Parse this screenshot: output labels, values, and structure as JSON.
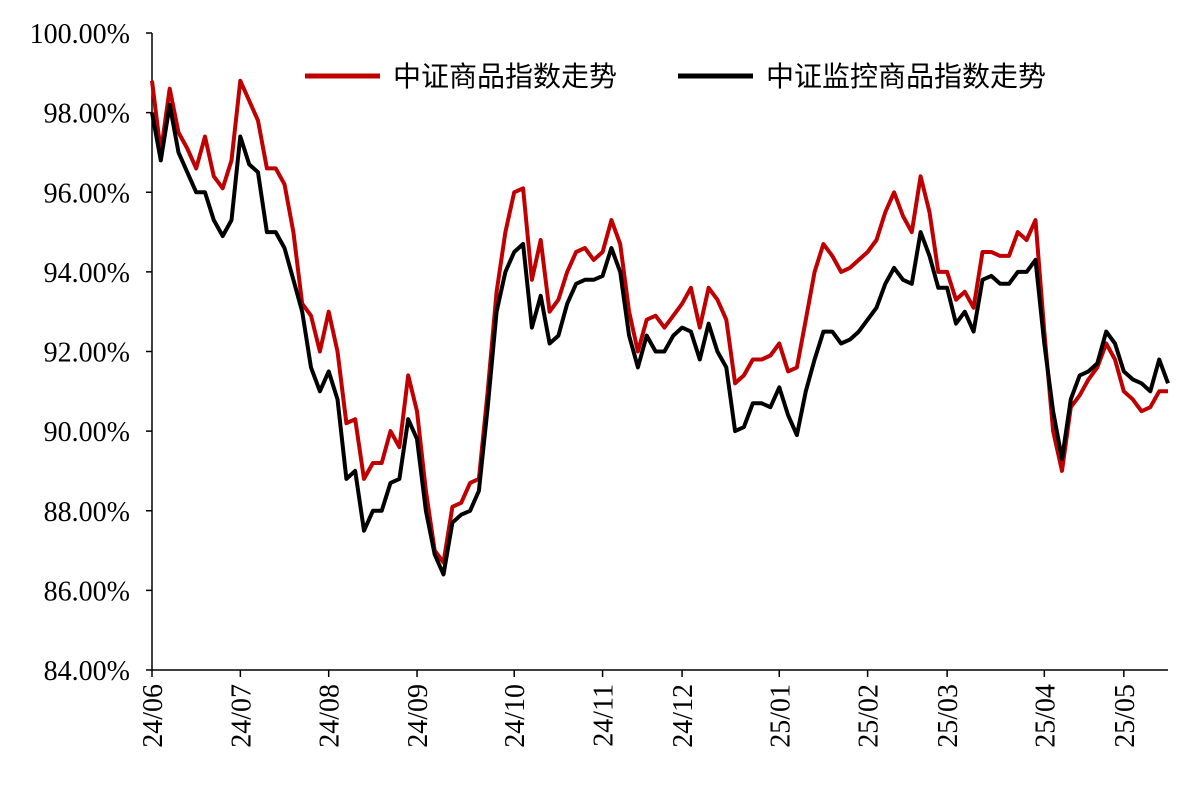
{
  "chart_data": {
    "type": "line",
    "categories": [
      "24/06",
      null,
      null,
      null,
      null,
      null,
      null,
      null,
      null,
      null,
      "24/07",
      null,
      null,
      null,
      null,
      null,
      null,
      null,
      null,
      null,
      "24/08",
      null,
      null,
      null,
      null,
      null,
      null,
      null,
      null,
      null,
      "24/09",
      null,
      null,
      null,
      null,
      null,
      null,
      null,
      null,
      null,
      null,
      "24/10",
      null,
      null,
      null,
      null,
      null,
      null,
      null,
      null,
      null,
      "24/11",
      null,
      null,
      null,
      null,
      null,
      null,
      null,
      null,
      "24/12",
      null,
      null,
      null,
      null,
      null,
      null,
      null,
      null,
      null,
      null,
      "25/01",
      null,
      null,
      null,
      null,
      null,
      null,
      null,
      null,
      null,
      "25/02",
      null,
      null,
      null,
      null,
      null,
      null,
      null,
      null,
      "25/03",
      null,
      null,
      null,
      null,
      null,
      null,
      null,
      null,
      null,
      null,
      "25/04",
      null,
      null,
      null,
      null,
      null,
      null,
      null,
      null,
      "25/05",
      null,
      null,
      null,
      null,
      null
    ],
    "series": [
      {
        "name": "中证商品指数走势",
        "color": "#c00000",
        "values": [
          98.8,
          97.0,
          98.6,
          97.5,
          97.1,
          96.6,
          97.4,
          96.4,
          96.1,
          96.8,
          98.8,
          98.3,
          97.8,
          96.6,
          96.6,
          96.2,
          95.0,
          93.2,
          92.9,
          92.0,
          93.0,
          92.0,
          90.2,
          90.3,
          88.8,
          89.2,
          89.2,
          90.0,
          89.6,
          91.4,
          90.5,
          88.5,
          87.0,
          86.7,
          88.1,
          88.2,
          88.7,
          88.8,
          91.0,
          93.5,
          95.0,
          96.0,
          96.1,
          93.8,
          94.8,
          93.0,
          93.3,
          94.0,
          94.5,
          94.6,
          94.3,
          94.5,
          95.3,
          94.7,
          93.0,
          92.0,
          92.8,
          92.9,
          92.6,
          92.9,
          93.2,
          93.6,
          92.6,
          93.6,
          93.3,
          92.8,
          91.2,
          91.4,
          91.8,
          91.8,
          91.9,
          92.2,
          91.5,
          91.6,
          92.8,
          94.0,
          94.7,
          94.4,
          94.0,
          94.1,
          94.3,
          94.5,
          94.8,
          95.5,
          96.0,
          95.4,
          95.0,
          96.4,
          95.5,
          94.0,
          94.0,
          93.3,
          93.5,
          93.1,
          94.5,
          94.5,
          94.4,
          94.4,
          95.0,
          94.8,
          95.3,
          92.5,
          90.0,
          89.0,
          90.6,
          90.9,
          91.3,
          91.6,
          92.2,
          91.8,
          91.0,
          90.8,
          90.5,
          90.6,
          91.0,
          91.0
        ]
      },
      {
        "name": "中证监控商品指数走势",
        "color": "#000000",
        "values": [
          98.0,
          96.8,
          98.2,
          97.0,
          96.5,
          96.0,
          96.0,
          95.3,
          94.9,
          95.3,
          97.4,
          96.7,
          96.5,
          95.0,
          95.0,
          94.6,
          93.8,
          93.0,
          91.6,
          91.0,
          91.5,
          90.8,
          88.8,
          89.0,
          87.5,
          88.0,
          88.0,
          88.7,
          88.8,
          90.3,
          89.8,
          88.0,
          86.9,
          86.4,
          87.7,
          87.9,
          88.0,
          88.5,
          90.6,
          93.0,
          94.0,
          94.5,
          94.7,
          92.6,
          93.4,
          92.2,
          92.4,
          93.2,
          93.7,
          93.8,
          93.8,
          93.9,
          94.6,
          94.0,
          92.4,
          91.6,
          92.4,
          92.0,
          92.0,
          92.4,
          92.6,
          92.5,
          91.8,
          92.7,
          92.0,
          91.6,
          90.0,
          90.1,
          90.7,
          90.7,
          90.6,
          91.1,
          90.4,
          89.9,
          91.0,
          91.8,
          92.5,
          92.5,
          92.2,
          92.3,
          92.5,
          92.8,
          93.1,
          93.7,
          94.1,
          93.8,
          93.7,
          95.0,
          94.4,
          93.6,
          93.6,
          92.7,
          93.0,
          92.5,
          93.8,
          93.9,
          93.7,
          93.7,
          94.0,
          94.0,
          94.3,
          92.2,
          90.5,
          89.3,
          90.8,
          91.4,
          91.5,
          91.7,
          92.5,
          92.2,
          91.5,
          91.3,
          91.2,
          91.0,
          91.8,
          91.2
        ]
      }
    ],
    "ylim": [
      84,
      100
    ],
    "yticks": [
      {
        "value": 84,
        "label": "84.00%"
      },
      {
        "value": 86,
        "label": "86.00%"
      },
      {
        "value": 88,
        "label": "88.00%"
      },
      {
        "value": 90,
        "label": "90.00%"
      },
      {
        "value": 92,
        "label": "92.00%"
      },
      {
        "value": 94,
        "label": "94.00%"
      },
      {
        "value": 96,
        "label": "96.00%"
      },
      {
        "value": 98,
        "label": "98.00%"
      },
      {
        "value": 100,
        "label": "100.00%"
      }
    ],
    "grid": false,
    "legend": "top"
  }
}
